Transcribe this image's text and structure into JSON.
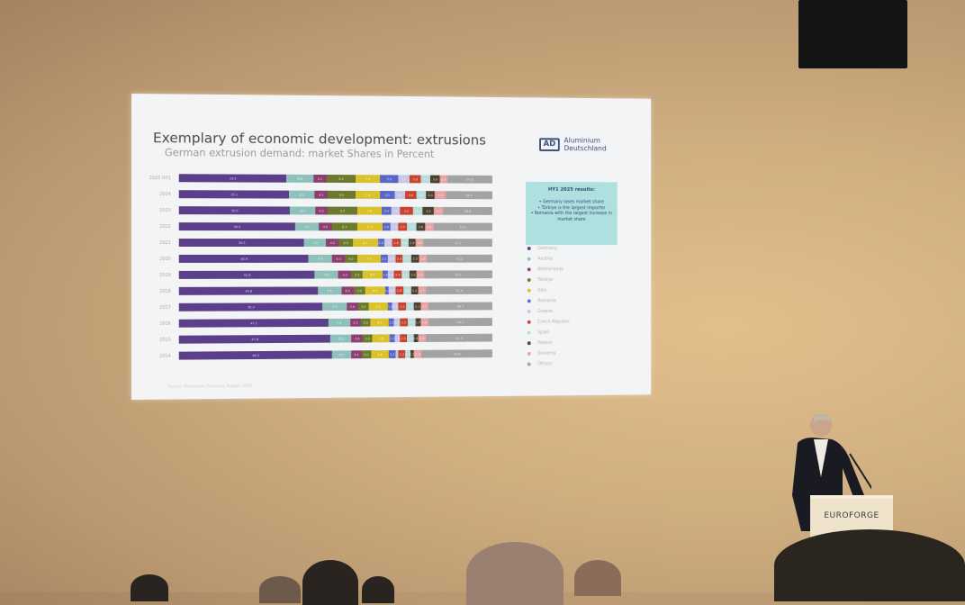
{
  "slide": {
    "title": "Exemplary of economic development: extrusions",
    "subtitle": "German extrusion demand: market Shares in Percent",
    "logo": "Aluminium Deutschland",
    "callout": {
      "heading": "HY1 2025 results:",
      "bullets": [
        "Germany loses market share",
        "Türkiye is the largest importer",
        "Romania with the largest increase in market share"
      ]
    },
    "source": "Source: Aluminium Germany August 2025"
  },
  "podium": {
    "brand": "EUROFORGE"
  },
  "chart_data": {
    "type": "bar",
    "orientation": "horizontal",
    "stacked": true,
    "title": "German extrusion demand: market Shares in Percent",
    "categories": [
      "2025 HY1",
      "2024",
      "2023",
      "2022",
      "2021",
      "2020",
      "2019",
      "2018",
      "2017",
      "2016",
      "2015",
      "2014"
    ],
    "legend_position": "right",
    "series": [
      {
        "name": "Germany",
        "color": "#5b3f8a",
        "values": [
          33.9,
          35.1,
          35.0,
          36.5,
          39.5,
          40.9,
          42.8,
          43.8,
          45.3,
          47.1,
          47.8,
          48.3
        ]
      },
      {
        "name": "Austria",
        "color": "#8fc1bb",
        "values": [
          8.6,
          8.2,
          8.0,
          7.7,
          7.0,
          7.5,
          7.6,
          7.5,
          7.7,
          7.0,
          6.8,
          6.1
        ]
      },
      {
        "name": "Netherlands",
        "color": "#8e3f72",
        "values": [
          4.1,
          4.1,
          4.0,
          4.0,
          4.0,
          4.0,
          4.2,
          4.0,
          3.6,
          3.5,
          3.6,
          3.4
        ]
      },
      {
        "name": "Türkiye",
        "color": "#6b7a2e",
        "values": [
          9.4,
          9.0,
          9.5,
          8.3,
          4.5,
          4.0,
          3.5,
          3.6,
          3.5,
          3.0,
          3.0,
          3.0
        ]
      },
      {
        "name": "Italy",
        "color": "#d9c22a",
        "values": [
          7.8,
          7.8,
          7.8,
          8.0,
          8.0,
          7.5,
          6.5,
          6.5,
          6.2,
          6.0,
          5.6,
          5.8
        ]
      },
      {
        "name": "Romania",
        "color": "#5a67c8",
        "values": [
          5.9,
          5.0,
          3.0,
          2.6,
          2.0,
          2.2,
          1.6,
          1.2,
          1.4,
          1.5,
          1.7,
          2.1
        ]
      },
      {
        "name": "Greece",
        "color": "#c8c6e6",
        "values": [
          3.5,
          3.2,
          3.0,
          2.4,
          2.5,
          2.6,
          2.0,
          2.0,
          2.0,
          2.0,
          1.5,
          1.0
        ]
      },
      {
        "name": "Czech Republic",
        "color": "#c8432e",
        "values": [
          3.8,
          3.8,
          4.0,
          3.0,
          2.8,
          2.4,
          2.4,
          2.6,
          2.5,
          2.5,
          2.5,
          2.2
        ]
      },
      {
        "name": "Spain",
        "color": "#b8dcd8",
        "values": [
          3.1,
          3.0,
          3.3,
          3.0,
          2.5,
          2.7,
          2.7,
          2.6,
          2.5,
          2.5,
          2.0,
          1.5
        ]
      },
      {
        "name": "Poland",
        "color": "#4d4230",
        "values": [
          3.0,
          3.0,
          3.5,
          2.6,
          2.5,
          2.5,
          2.2,
          2.1,
          2.1,
          1.7,
          1.4,
          1.2
        ]
      },
      {
        "name": "Slovenia",
        "color": "#e6a3a3",
        "values": [
          2.4,
          3.5,
          3.0,
          2.8,
          2.5,
          2.5,
          2.4,
          2.7,
          2.5,
          2.5,
          2.6,
          2.6
        ]
      },
      {
        "name": "Others",
        "color": "#a3a3a3",
        "values": [
          14.6,
          15.3,
          16.0,
          19.1,
          22.2,
          21.2,
          22.1,
          21.4,
          20.7,
          20.7,
          21.5,
          22.8
        ]
      }
    ]
  }
}
